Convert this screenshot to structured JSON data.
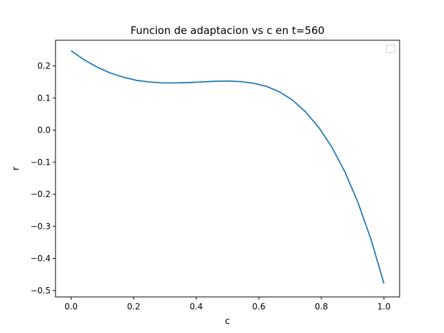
{
  "chart_data": {
    "type": "line",
    "title": "Funcion de adaptacion vs c en t=560",
    "xlabel": "c",
    "ylabel": "r",
    "xlim": [
      -0.05,
      1.05
    ],
    "ylim": [
      -0.52,
      0.28
    ],
    "xticks": [
      "0.0",
      "0.2",
      "0.4",
      "0.6",
      "0.8",
      "1.0"
    ],
    "xtick_values": [
      0.0,
      0.2,
      0.4,
      0.6,
      0.8,
      1.0
    ],
    "yticks": [
      "0.2",
      "0.1",
      "0.0",
      "−0.1",
      "−0.2",
      "−0.3",
      "−0.4",
      "−0.5"
    ],
    "ytick_values": [
      0.2,
      0.1,
      0.0,
      -0.1,
      -0.2,
      -0.3,
      -0.4,
      -0.5
    ],
    "grid": false,
    "legend": "top-right (empty)",
    "series": [
      {
        "color": "#1f77b4",
        "x": [
          0.0,
          0.0417,
          0.0833,
          0.125,
          0.1667,
          0.2083,
          0.25,
          0.2917,
          0.3333,
          0.375,
          0.4167,
          0.4583,
          0.5,
          0.5417,
          0.5833,
          0.625,
          0.6667,
          0.7083,
          0.75,
          0.7917,
          0.8333,
          0.875,
          0.9167,
          0.9583,
          1.0
        ],
        "y": [
          0.247,
          0.219,
          0.196,
          0.178,
          0.165,
          0.155,
          0.15,
          0.147,
          0.147,
          0.148,
          0.15,
          0.152,
          0.153,
          0.151,
          0.146,
          0.136,
          0.119,
          0.093,
          0.056,
          0.008,
          -0.053,
          -0.13,
          -0.225,
          -0.34,
          -0.478
        ]
      }
    ]
  }
}
